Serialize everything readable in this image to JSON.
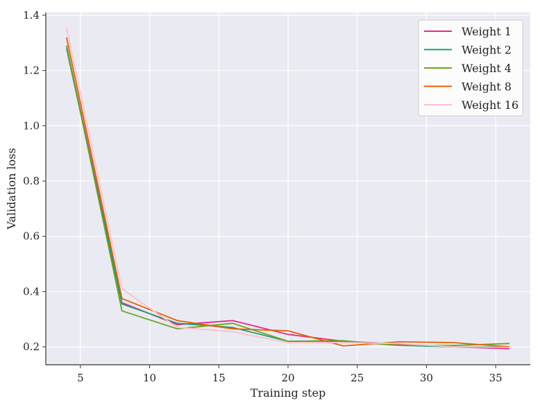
{
  "chart_data": {
    "type": "line",
    "title": "",
    "xlabel": "Training step",
    "ylabel": "Validation loss",
    "xlim": [
      2.5,
      37.5
    ],
    "ylim": [
      0.135,
      1.41
    ],
    "xticks": [
      5,
      10,
      15,
      20,
      25,
      30,
      35
    ],
    "yticks": [
      0.2,
      0.4,
      0.6,
      0.8,
      1.0,
      1.2,
      1.4
    ],
    "ytick_labels": [
      "0.2",
      "0.4",
      "0.6",
      "0.8",
      "1.0",
      "1.2",
      "1.4"
    ],
    "grid": true,
    "legend_position": "top-right",
    "x": [
      4,
      8,
      12,
      16,
      20,
      24,
      28,
      32,
      36
    ],
    "series": [
      {
        "name": "Weight 1",
        "color": "#e7298a",
        "values": [
          1.29,
          0.36,
          0.28,
          0.295,
          0.245,
          0.22,
          0.21,
          0.2,
          0.193
        ]
      },
      {
        "name": "Weight 2",
        "color": "#1b9e77",
        "values": [
          1.28,
          0.355,
          0.285,
          0.27,
          0.22,
          0.22,
          0.205,
          0.2,
          0.2
        ]
      },
      {
        "name": "Weight 4",
        "color": "#66a61e",
        "values": [
          1.29,
          0.33,
          0.265,
          0.285,
          0.22,
          0.222,
          0.205,
          0.205,
          0.212
        ]
      },
      {
        "name": "Weight 8",
        "color": "#e66101",
        "values": [
          1.32,
          0.375,
          0.295,
          0.265,
          0.258,
          0.203,
          0.218,
          0.215,
          0.2
        ]
      },
      {
        "name": "Weight 16",
        "color": "#ffc0cb",
        "values": [
          1.355,
          0.41,
          0.27,
          0.255,
          0.215,
          0.215,
          0.212,
          0.2,
          0.198
        ]
      }
    ]
  }
}
